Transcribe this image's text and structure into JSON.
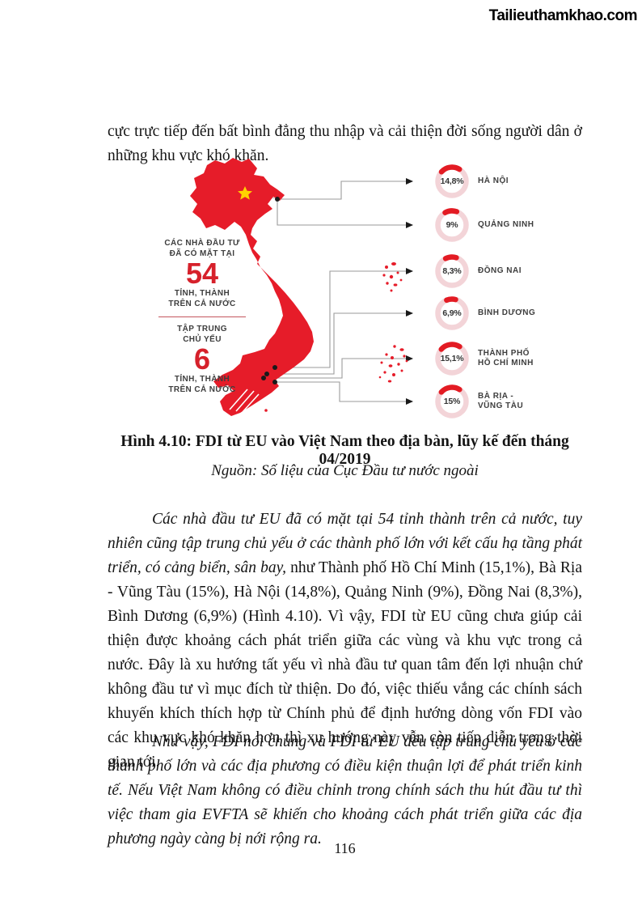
{
  "watermark": "Tailieuthamkhao.com",
  "page_number": "116",
  "paragraphs": {
    "p1": "cực trực tiếp đến bất bình đẳng thu nhập và cải thiện đời sống người dân ở những khu vực khó khăn.",
    "p2_italic": "Các nhà đầu tư EU đã có mặt tại 54 tỉnh thành trên cả nước, tuy nhiên cũng tập trung chủ yếu ở các thành phố lớn với kết cấu hạ tầng phát triển, có cảng biển, sân bay,",
    "p2_regular": " như Thành phố Hồ Chí Minh (15,1%), Bà Rịa - Vũng Tàu (15%), Hà Nội (14,8%), Quảng Ninh (9%), Đồng Nai (8,3%), Bình Dương (6,9%) (Hình 4.10). Vì vậy, FDI từ EU cũng chưa giúp cải thiện được khoảng cách phát triển giữa các vùng và khu vực trong cả nước. Đây là xu hướng tất yếu vì nhà đầu tư quan tâm đến lợi nhuận chứ không đầu tư vì mục đích từ thiện. Do đó, việc thiếu vắng các chính sách khuyến khích thích hợp từ Chính phủ để định hướng dòng vốn FDI vào các khu vực khó khăn hơn thì xu hướng này vẫn còn tiếp diễn trong thời gian tới.",
    "p3": "Như vậy, FDI nói chung và FDI từ EU đều tập trung chủ yếu ở các thành phố lớn và các địa phương có điều kiện thuận lợi để phát triển kinh tế. Nếu Việt Nam không có điều chỉnh trong chính sách thu hút đầu tư thì việc tham gia EVFTA sẽ khiến cho khoảng cách phát triển giữa các địa phương ngày càng bị nới rộng ra."
  },
  "figure": {
    "caption": "Hình 4.10: FDI từ EU vào Việt Nam theo địa bàn, lũy kế đến tháng 04/2019",
    "source": "Nguồn: Số liệu của Cục Đầu tư nước ngoài",
    "stats": {
      "line1a": "CÁC NHÀ ĐẦU TƯ",
      "line1b": "ĐÃ CÓ MẶT TẠI",
      "value1": "54",
      "line1c": "TỈNH, THÀNH",
      "line1d": "TRÊN CẢ NƯỚC",
      "line2a": "TẬP TRUNG",
      "line2b": "CHỦ YẾU",
      "value2": "6",
      "line2c": "TỈNH, THÀNH",
      "line2d": "TRÊN CẢ NƯỚC"
    },
    "donuts": [
      {
        "pct_label": "14,8%",
        "pct": 14.8,
        "province": "HÀ NỘI"
      },
      {
        "pct_label": "9%",
        "pct": 9,
        "province": "QUẢNG NINH"
      },
      {
        "pct_label": "8,3%",
        "pct": 8.3,
        "province": "ĐỒNG NAI"
      },
      {
        "pct_label": "6,9%",
        "pct": 6.9,
        "province": "BÌNH DƯƠNG"
      },
      {
        "pct_label": "15,1%",
        "pct": 15.1,
        "province": "THÀNH PHỐ\nHỒ CHÍ MINH"
      },
      {
        "pct_label": "15%",
        "pct": 15,
        "province": "BÀ RỊA -\nVŨNG TÀU"
      }
    ]
  },
  "chart_data": {
    "type": "pie",
    "title": "FDI từ EU vào Việt Nam theo địa bàn, lũy kế đến tháng 04/2019",
    "categories": [
      "Hà Nội",
      "Quảng Ninh",
      "Đồng Nai",
      "Bình Dương",
      "Thành phố Hồ Chí Minh",
      "Bà Rịa - Vũng Tàu"
    ],
    "values": [
      14.8,
      9,
      8.3,
      6.9,
      15.1,
      15
    ],
    "unit": "%",
    "annotations": [
      "Các nhà đầu tư đã có mặt tại 54 tỉnh, thành trên cả nước",
      "Tập trung chủ yếu 6 tỉnh, thành trên cả nước"
    ],
    "legend_position": "right",
    "source": "Số liệu của Cục Đầu tư nước ngoài"
  },
  "colors": {
    "map_red": "#e61c29",
    "donut_red": "#e31b23",
    "donut_track": "#f3d4d8",
    "star_yellow": "#ffd200",
    "label_gray": "#3e3e3e",
    "connector_gray": "#9a9a9a",
    "city_dot": "#1a1a1a"
  }
}
